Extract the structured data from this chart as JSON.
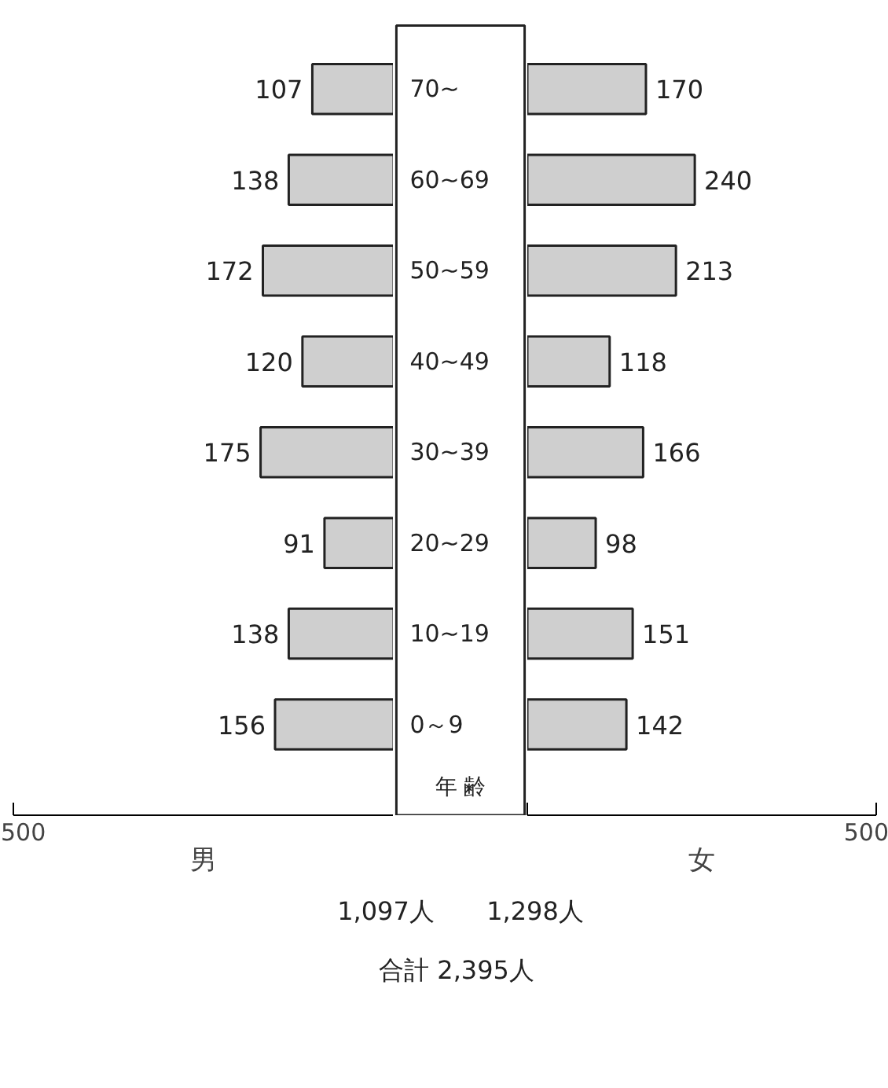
{
  "chart_data": [
    {
      "type": "bar",
      "orientation": "horizontal",
      "xlabel": "男",
      "tick_labels": "x",
      "values": [
        107,
        138,
        172,
        120,
        175,
        91,
        138,
        156
      ],
      "color": "#cfcfcf",
      "data_labels": true,
      "xlim": [
        500,
        0
      ],
      "xticks": [
        500,
        {
          "value": 0,
          "label": null
        }
      ],
      "annotations": [
        "1,097人"
      ]
    },
    {
      "type": "bar",
      "orientation": "horizontal",
      "xlabel": "女",
      "ylabel": "年 齢",
      "categories": [
        "70~",
        "60~69",
        "50~59",
        "40~49",
        "30~39",
        "20~29",
        "10~19",
        "0～9"
      ],
      "values": [
        170,
        240,
        213,
        118,
        166,
        98,
        151,
        142
      ],
      "color": "#cfcfcf",
      "data_labels": true,
      "xlim": [
        0,
        500
      ],
      "xticks": [
        {
          "value": 0,
          "label": null
        },
        500
      ],
      "annotations": [
        "1,298人",
        "合計 2,395人"
      ]
    }
  ]
}
